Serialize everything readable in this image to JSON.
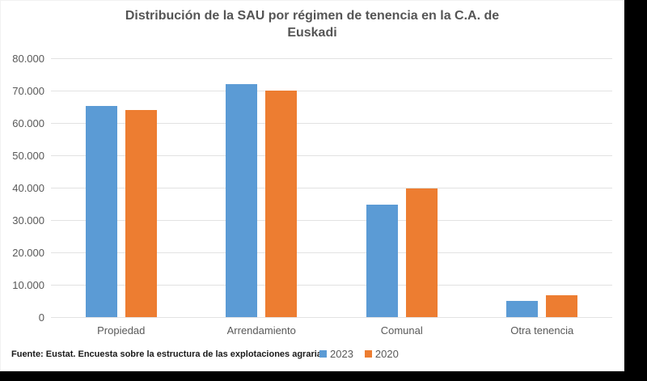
{
  "window": {
    "outside_fill": "#000000",
    "chart_background": "#ffffff"
  },
  "header": {
    "title_line1": "Distribución de la SAU por régimen de tenencia en la C.A. de",
    "title_line2": "Euskadi"
  },
  "footer": {
    "source": "Fuente: Eustat. Encuesta sobre la estructura de las explotaciones agrarias"
  },
  "chart_data": {
    "type": "bar",
    "title": "Distribución de la SAU por régimen de tenencia en la C.A. de Euskadi",
    "categories": [
      "Propiedad",
      "Arrendamiento",
      "Comunal",
      "Otra tenencia"
    ],
    "series": [
      {
        "name": "2023",
        "color": "#5B9BD5",
        "values": [
          65200,
          72000,
          34800,
          5000
        ]
      },
      {
        "name": "2020",
        "color": "#ED7D31",
        "values": [
          64000,
          70000,
          39700,
          6700
        ]
      }
    ],
    "xlabel": "",
    "ylabel": "",
    "ylim": [
      0,
      80000
    ],
    "y_tick_interval": 10000,
    "y_tick_labels": [
      "0",
      "10.000",
      "20.000",
      "30.000",
      "40.000",
      "50.000",
      "60.000",
      "70.000",
      "80.000"
    ],
    "grid": "horizontal",
    "legend_position": "bottom-center",
    "colors": {
      "gridline": "#e2e2e2",
      "axis_text": "#595959",
      "title_text": "#555555"
    }
  }
}
